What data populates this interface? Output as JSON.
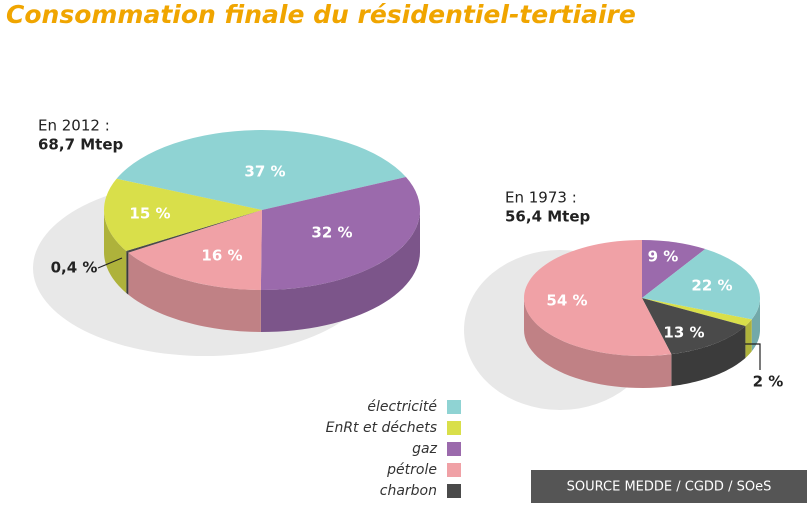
{
  "title": "Consommation finale du résidentiel-tertiaire",
  "source": "SOURCE MEDDE / CGDD / SOeS",
  "legend": {
    "labels": [
      "électricité",
      "EnRt et déchets",
      "gaz",
      "pétrole",
      "charbon"
    ],
    "colors": [
      "#8fd3d3",
      "#d9df4a",
      "#9b6aac",
      "#f0a1a6",
      "#4a4a4a"
    ]
  },
  "chart_data": [
    {
      "type": "pie",
      "title": "En 2012 :",
      "subtitle": "68,7 Mtep",
      "values": [
        37,
        15,
        32,
        16,
        0.4
      ],
      "value_labels": [
        "37 %",
        "15 %",
        "32 %",
        "16 %",
        "0,4 %"
      ]
    },
    {
      "type": "pie",
      "title": "En 1973 :",
      "subtitle": "56,4 Mtep",
      "values": [
        22,
        2,
        9,
        54,
        13
      ],
      "value_labels": [
        "22 %",
        "2 %",
        "9 %",
        "54 %",
        "13 %"
      ]
    }
  ]
}
